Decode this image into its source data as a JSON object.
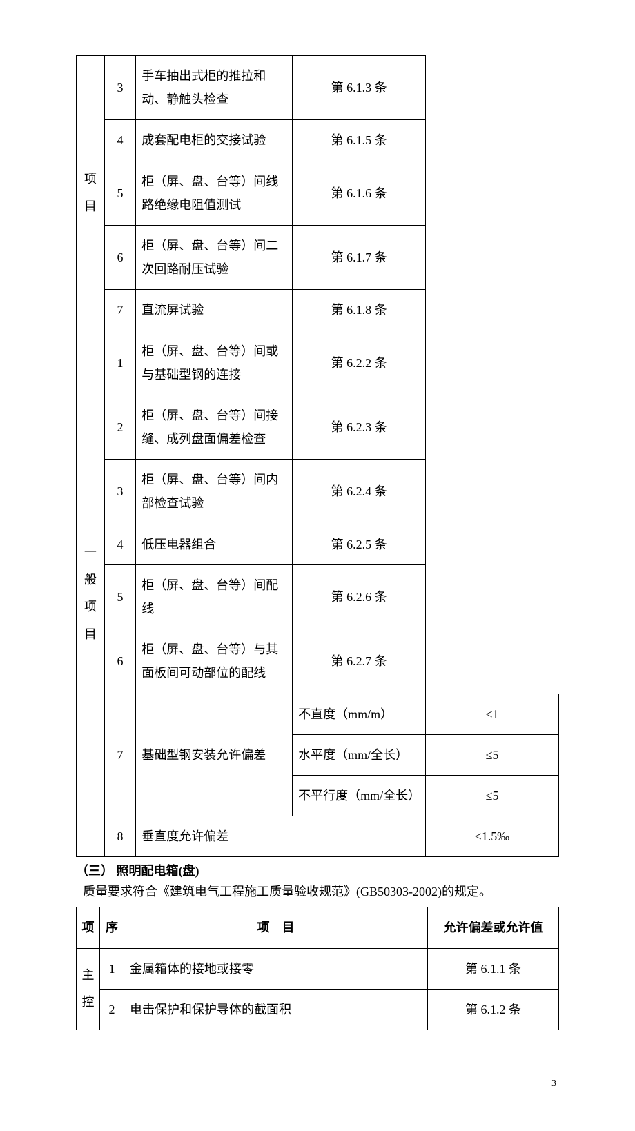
{
  "table1": {
    "topCat": "项目",
    "topRows": [
      {
        "n": "3",
        "desc": "手车抽出式柜的推拉和动、静触头检查",
        "ref": "第 6.1.3 条"
      },
      {
        "n": "4",
        "desc": "成套配电柜的交接试验",
        "ref": "第 6.1.5 条"
      },
      {
        "n": "5",
        "desc": "柜（屏、盘、台等）间线路绝缘电阻值测试",
        "ref": "第 6.1.6 条"
      },
      {
        "n": "6",
        "desc": "柜（屏、盘、台等）间二次回路耐压试验",
        "ref": "第 6.1.7 条"
      },
      {
        "n": "7",
        "desc": "直流屏试验",
        "ref": "第 6.1.8 条"
      }
    ],
    "genCat": "一般项目",
    "genRows": [
      {
        "n": "1",
        "desc": "柜（屏、盘、台等）间或与基础型钢的连接",
        "ref": "第 6.2.2 条"
      },
      {
        "n": "2",
        "desc": "柜（屏、盘、台等）间接缝、成列盘面偏差检查",
        "ref": "第 6.2.3 条"
      },
      {
        "n": "3",
        "desc": "柜（屏、盘、台等）间内部检查试验",
        "ref": "第 6.2.4 条"
      },
      {
        "n": "4",
        "desc": "低压电器组合",
        "ref": "第 6.2.5 条"
      },
      {
        "n": "5",
        "desc": "柜（屏、盘、台等）间配线",
        "ref": "第 6.2.6 条"
      },
      {
        "n": "6",
        "desc": "柜（屏、盘、台等）与其面板间可动部位的配线",
        "ref": "第 6.2.7 条"
      }
    ],
    "genRow7": {
      "n": "7",
      "desc": "基础型钢安装允许偏差",
      "subs": [
        {
          "k": "不直度（mm/m）",
          "v": "≤1"
        },
        {
          "k": "水平度（mm/全长）",
          "v": "≤5"
        },
        {
          "k": "不平行度（mm/全长）",
          "v": "≤5"
        }
      ]
    },
    "genRow8": {
      "n": "8",
      "desc": "垂直度允许偏差",
      "ref": "≤1.5‰"
    }
  },
  "section": {
    "heading": "（三） 照明配电箱(盘)",
    "body": "质量要求符合《建筑电气工程施工质量验收规范》(GB50303-2002)的规定。"
  },
  "table2": {
    "headers": {
      "cat": "项",
      "num": "序",
      "desc": "项　目",
      "ref": "允许偏差或允许值"
    },
    "cat": "主控",
    "rows": [
      {
        "n": "1",
        "desc": "金属箱体的接地或接零",
        "ref": "第 6.1.1 条"
      },
      {
        "n": "2",
        "desc": "电击保护和保护导体的截面积",
        "ref": "第 6.1.2 条"
      }
    ]
  },
  "pageNumber": "3"
}
